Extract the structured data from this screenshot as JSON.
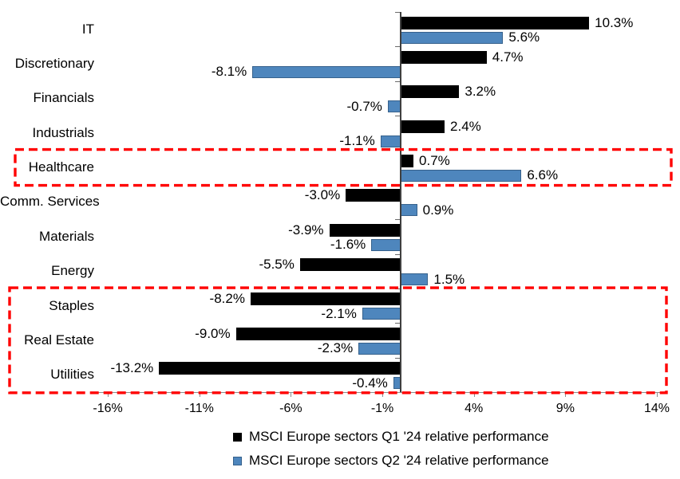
{
  "chart_data": {
    "type": "bar",
    "orientation": "horizontal",
    "title": "",
    "xlabel": "",
    "ylabel": "",
    "grid": false,
    "legend_position": "bottom",
    "xlim": [
      -17.5,
      15.3
    ],
    "categories": [
      "IT",
      "Discretionary",
      "Financials",
      "Industrials",
      "Healthcare",
      "Comm. Services",
      "Materials",
      "Energy",
      "Staples",
      "Real Estate",
      "Utilities"
    ],
    "series": [
      {
        "name": "MSCI Europe sectors Q1 '24 relative performance",
        "color": "#000000",
        "border_color": "#000000",
        "values": [
          10.3,
          4.7,
          3.2,
          2.4,
          0.7,
          -3.0,
          -3.9,
          -5.5,
          -8.2,
          -9.0,
          -13.2
        ],
        "labels": [
          "10.3%",
          "4.7%",
          "3.2%",
          "2.4%",
          "0.7%",
          "-3.0%",
          "-3.9%",
          "-5.5%",
          "-8.2%",
          "-9.0%",
          "-13.2%"
        ]
      },
      {
        "name": "MSCI Europe sectors Q2 '24 relative performance",
        "color": "#4E86BD",
        "border_color": "#36618C",
        "values": [
          5.6,
          -8.1,
          -0.7,
          -1.1,
          6.6,
          0.9,
          -1.6,
          1.5,
          -2.1,
          -2.3,
          -0.4
        ],
        "labels": [
          "5.6%",
          "-8.1%",
          "-0.7%",
          "-1.1%",
          "6.6%",
          "0.9%",
          "-1.6%",
          "1.5%",
          "-2.1%",
          "-2.3%",
          "-0.4%"
        ]
      }
    ],
    "x_ticks": [
      {
        "value": -16,
        "label": "-16%"
      },
      {
        "value": -11,
        "label": "-11%"
      },
      {
        "value": -6,
        "label": "-6%"
      },
      {
        "value": -1,
        "label": "-1%"
      },
      {
        "value": 4,
        "label": "4%"
      },
      {
        "value": 9,
        "label": "9%"
      },
      {
        "value": 14,
        "label": "14%"
      }
    ],
    "highlights": [
      {
        "sectors": [
          "Healthcare"
        ]
      },
      {
        "sectors": [
          "Staples",
          "Real Estate",
          "Utilities"
        ]
      }
    ],
    "highlight_color": "#FF0000"
  }
}
